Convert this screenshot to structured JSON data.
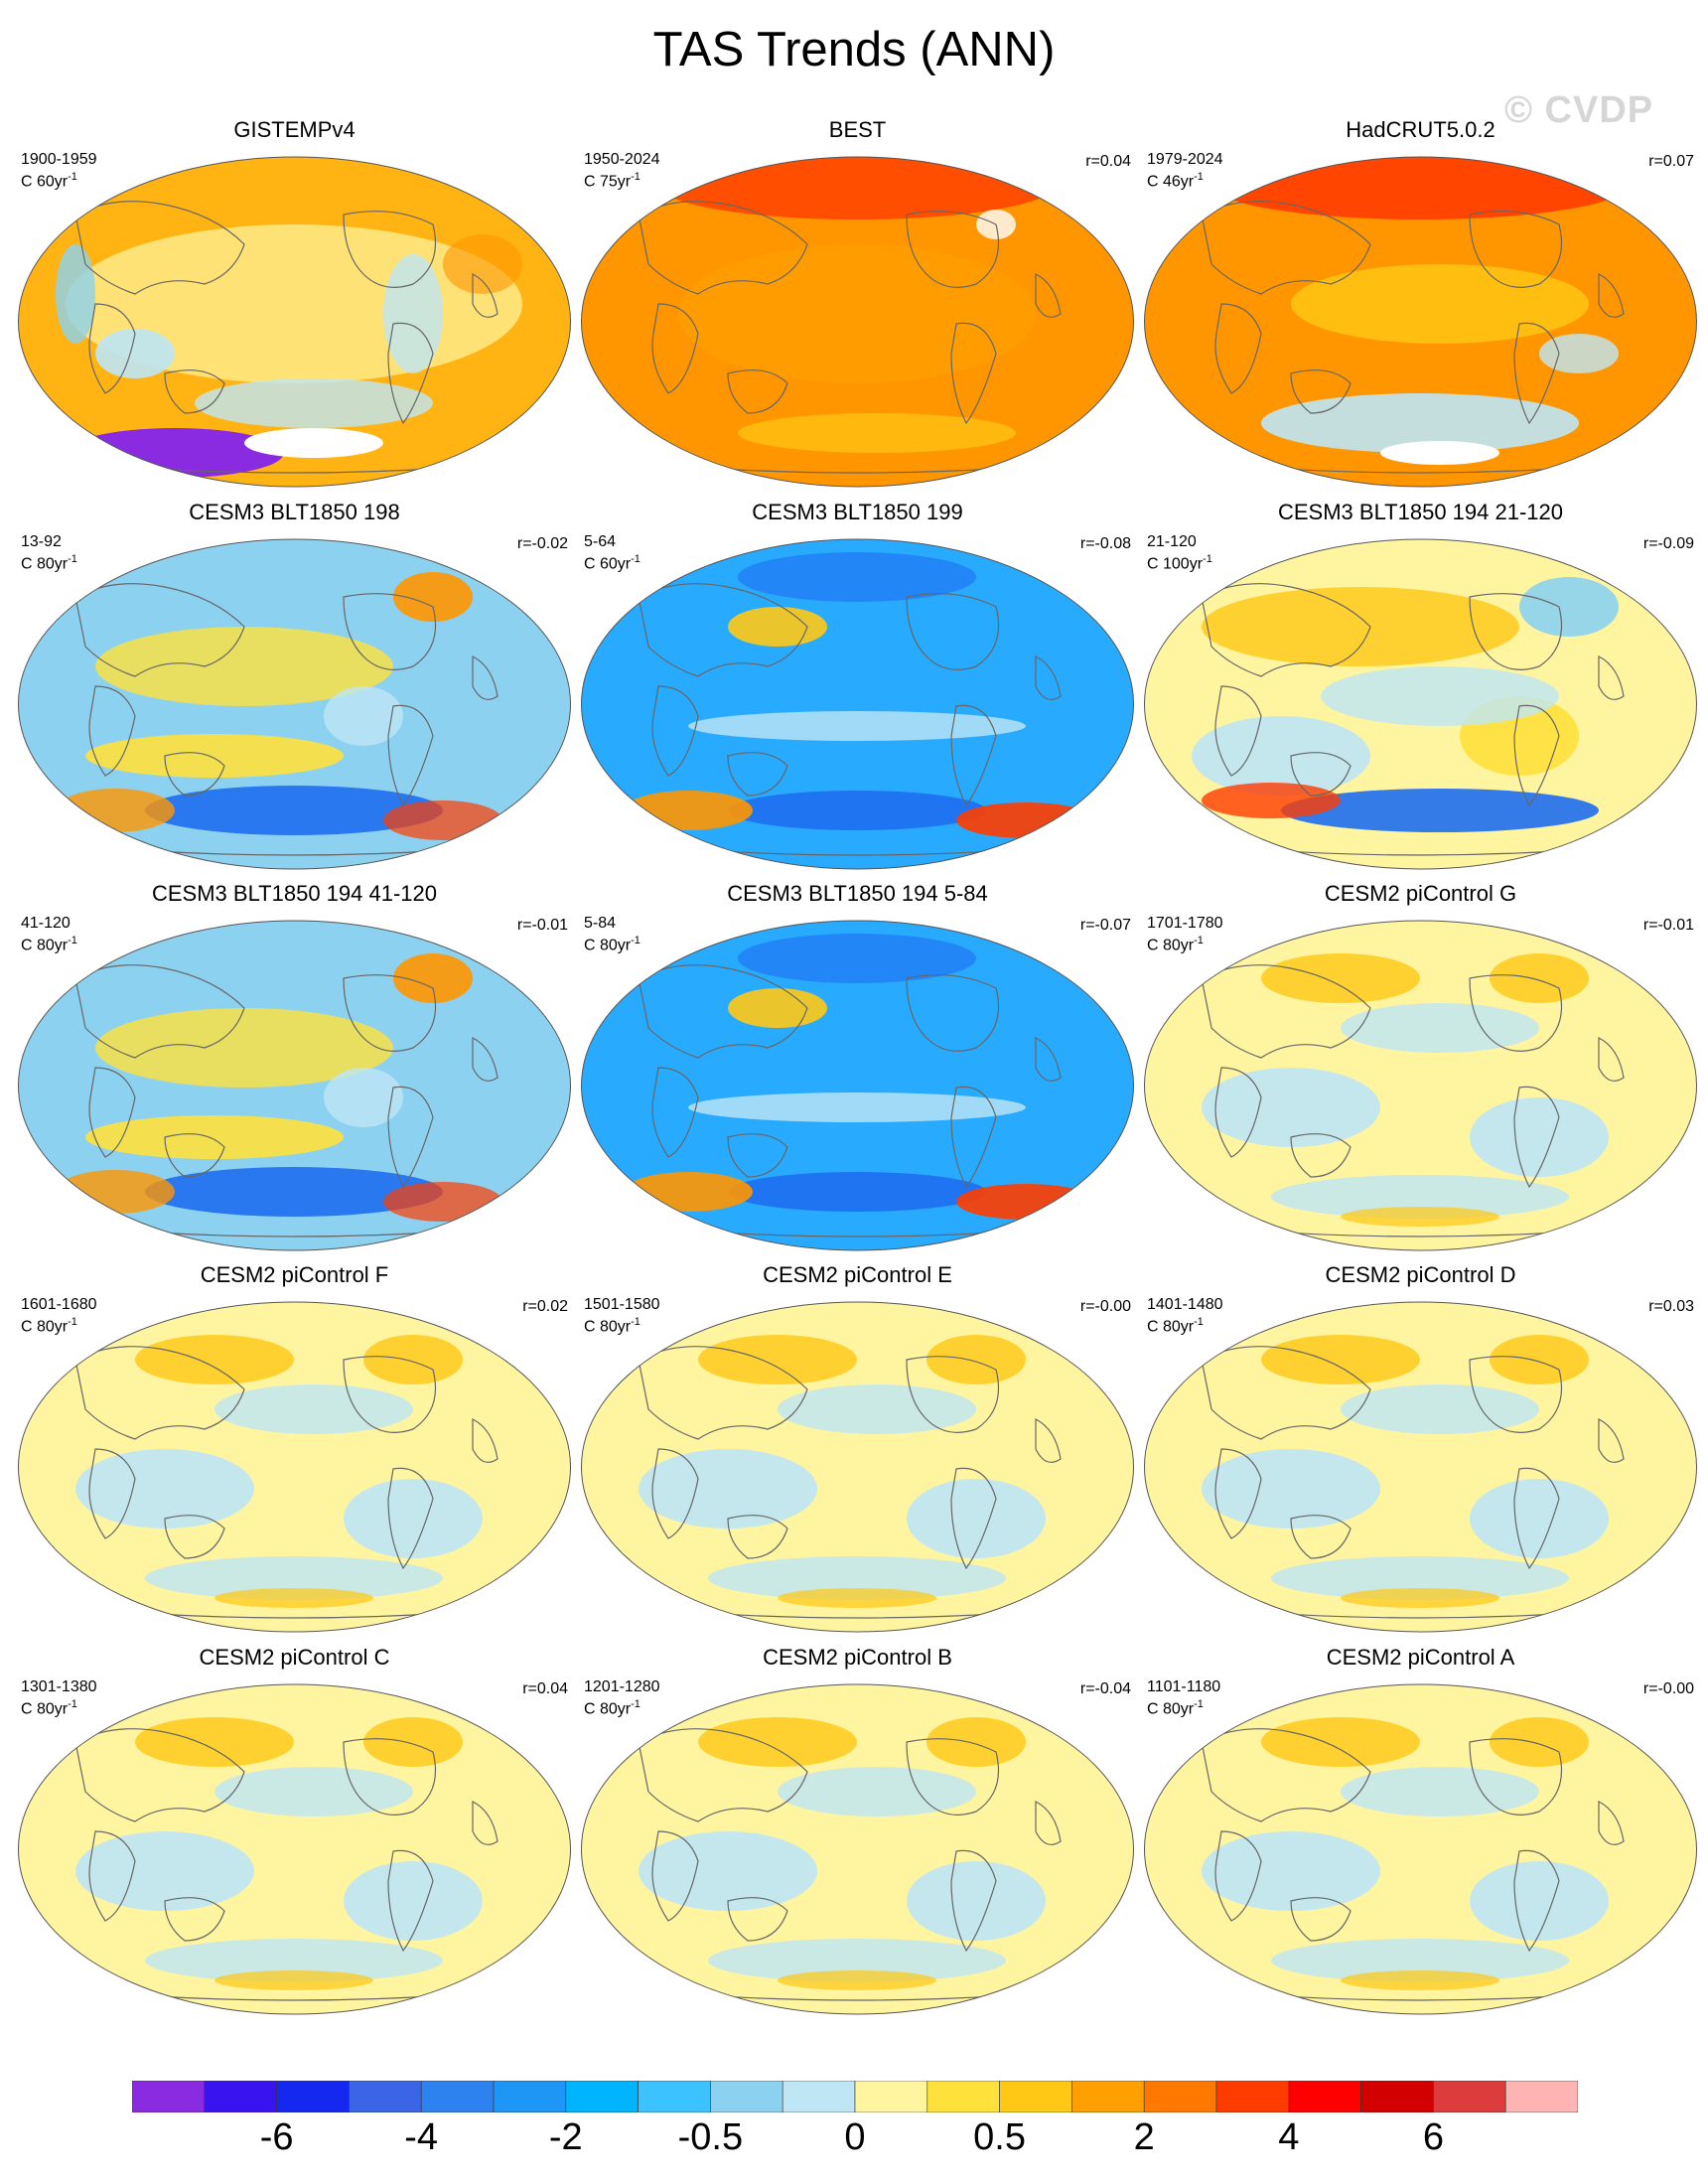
{
  "title": "TAS Trends (ANN)",
  "watermark": "© CVDP",
  "panels": [
    {
      "title": "GISTEMPv4",
      "years": "1900-1959",
      "units_base": "C 60yr",
      "units_exp": "-1",
      "r": "",
      "scheme": "obs1"
    },
    {
      "title": "BEST",
      "years": "1950-2024",
      "units_base": "C 75yr",
      "units_exp": "-1",
      "r": "r=0.04",
      "scheme": "obs2"
    },
    {
      "title": "HadCRUT5.0.2",
      "years": "1979-2024",
      "units_base": "C 46yr",
      "units_exp": "-1",
      "r": "r=0.07",
      "scheme": "obs3"
    },
    {
      "title": "CESM3 BLT1850 198",
      "years": "13-92",
      "units_base": "C 80yr",
      "units_exp": "-1",
      "r": "r=-0.02",
      "scheme": "cool"
    },
    {
      "title": "CESM3 BLT1850 199",
      "years": "5-64",
      "units_base": "C 60yr",
      "units_exp": "-1",
      "r": "r=-0.08",
      "scheme": "cold"
    },
    {
      "title": "CESM3 BLT1850 194 21-120",
      "years": "21-120",
      "units_base": "C 100yr",
      "units_exp": "-1",
      "r": "r=-0.09",
      "scheme": "mixed"
    },
    {
      "title": "CESM3 BLT1850 194 41-120",
      "years": "41-120",
      "units_base": "C 80yr",
      "units_exp": "-1",
      "r": "r=-0.01",
      "scheme": "cool"
    },
    {
      "title": "CESM3 BLT1850 194 5-84",
      "years": "5-84",
      "units_base": "C 80yr",
      "units_exp": "-1",
      "r": "r=-0.07",
      "scheme": "cold"
    },
    {
      "title": "CESM2 piControl G",
      "years": "1701-1780",
      "units_base": "C 80yr",
      "units_exp": "-1",
      "r": "r=-0.01",
      "scheme": "neutral"
    },
    {
      "title": "CESM2 piControl F",
      "years": "1601-1680",
      "units_base": "C 80yr",
      "units_exp": "-1",
      "r": "r=0.02",
      "scheme": "neutral"
    },
    {
      "title": "CESM2 piControl E",
      "years": "1501-1580",
      "units_base": "C 80yr",
      "units_exp": "-1",
      "r": "r=-0.00",
      "scheme": "neutral"
    },
    {
      "title": "CESM2 piControl D",
      "years": "1401-1480",
      "units_base": "C 80yr",
      "units_exp": "-1",
      "r": "r=0.03",
      "scheme": "neutral"
    },
    {
      "title": "CESM2 piControl C",
      "years": "1301-1380",
      "units_base": "C 80yr",
      "units_exp": "-1",
      "r": "r=0.04",
      "scheme": "neutral"
    },
    {
      "title": "CESM2 piControl B",
      "years": "1201-1280",
      "units_base": "C 80yr",
      "units_exp": "-1",
      "r": "r=-0.04",
      "scheme": "neutral"
    },
    {
      "title": "CESM2 piControl A",
      "years": "1101-1180",
      "units_base": "C 80yr",
      "units_exp": "-1",
      "r": "r=-0.00",
      "scheme": "neutral"
    }
  ],
  "colorbar": {
    "colors": [
      "#8a2be2",
      "#3a14f0",
      "#1428f0",
      "#3c64e6",
      "#2d82f0",
      "#1e96f5",
      "#00b4ff",
      "#3cc3ff",
      "#8cd2f0",
      "#bee6f5",
      "#fff5a0",
      "#ffe13c",
      "#ffc814",
      "#ffa000",
      "#ff7800",
      "#ff3c00",
      "#ff0000",
      "#d20000",
      "#dc3c3c",
      "#ffb4b4"
    ],
    "labels": [
      "-6",
      "-4",
      "-2",
      "-0.5",
      "0",
      "0.5",
      "2",
      "4",
      "6"
    ]
  },
  "palette": {
    "ocean_warm": "#ffb414",
    "ocean_hot": "#ff9600",
    "ocean_pale": "#fff5a0",
    "cool_light": "#bee6f5",
    "cool_mid": "#8cd2f0",
    "cool_deep": "#28aaff",
    "blue_strong": "#1e6ef0",
    "red_strong": "#ff3c00",
    "purple": "#8a2be2",
    "coast": "#666666"
  }
}
